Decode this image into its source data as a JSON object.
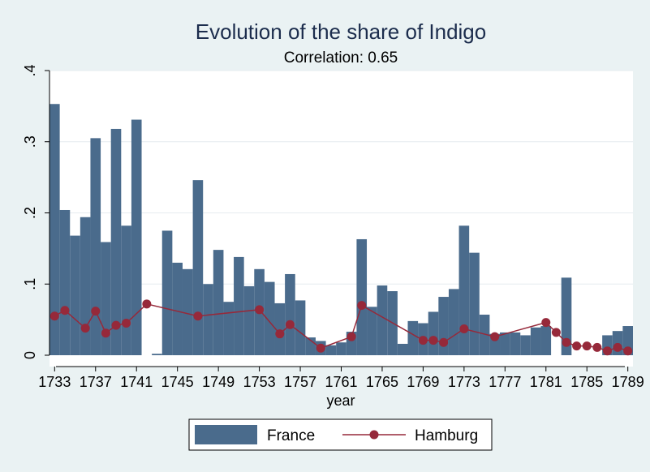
{
  "chart_data": {
    "type": "bar",
    "title": "Evolution of the share of Indigo",
    "subtitle": "Correlation: 0.65",
    "xlabel": "year",
    "ylabel": "",
    "xlim": [
      1732.5,
      1789.5
    ],
    "ylim": [
      0,
      0.4
    ],
    "x_ticks": [
      1733,
      1737,
      1741,
      1745,
      1749,
      1753,
      1757,
      1761,
      1765,
      1769,
      1773,
      1777,
      1781,
      1785,
      1789
    ],
    "y_ticks": [
      {
        "value": 0,
        "label": "0"
      },
      {
        "value": 0.1,
        "label": ".1"
      },
      {
        "value": 0.2,
        "label": ".2"
      },
      {
        "value": 0.3,
        "label": ".3"
      },
      {
        "value": 0.4,
        "label": ".4"
      }
    ],
    "grid": true,
    "legend_position": "bottom",
    "colors": {
      "france": "#4a6b8c",
      "hamburg": "#96293a",
      "plot_bg": "#ffffff",
      "grid": "#e6ecef",
      "page_bg": "#eaf2f3"
    },
    "series": [
      {
        "name": "France",
        "kind": "bar",
        "points": [
          [
            1733,
            0.353
          ],
          [
            1734,
            0.204
          ],
          [
            1735,
            0.168
          ],
          [
            1736,
            0.194
          ],
          [
            1737,
            0.305
          ],
          [
            1738,
            0.159
          ],
          [
            1739,
            0.318
          ],
          [
            1740,
            0.182
          ],
          [
            1741,
            0.331
          ],
          [
            1743,
            0.002
          ],
          [
            1744,
            0.175
          ],
          [
            1745,
            0.13
          ],
          [
            1746,
            0.121
          ],
          [
            1747,
            0.246
          ],
          [
            1748,
            0.1
          ],
          [
            1749,
            0.148
          ],
          [
            1750,
            0.075
          ],
          [
            1751,
            0.138
          ],
          [
            1752,
            0.097
          ],
          [
            1753,
            0.121
          ],
          [
            1754,
            0.103
          ],
          [
            1755,
            0.073
          ],
          [
            1756,
            0.114
          ],
          [
            1757,
            0.077
          ],
          [
            1758,
            0.025
          ],
          [
            1759,
            0.02
          ],
          [
            1760,
            0.014
          ],
          [
            1761,
            0.018
          ],
          [
            1762,
            0.033
          ],
          [
            1763,
            0.163
          ],
          [
            1764,
            0.068
          ],
          [
            1765,
            0.098
          ],
          [
            1766,
            0.09
          ],
          [
            1767,
            0.016
          ],
          [
            1768,
            0.048
          ],
          [
            1769,
            0.045
          ],
          [
            1770,
            0.061
          ],
          [
            1771,
            0.082
          ],
          [
            1772,
            0.093
          ],
          [
            1773,
            0.182
          ],
          [
            1774,
            0.144
          ],
          [
            1775,
            0.057
          ],
          [
            1776,
            0.03
          ],
          [
            1777,
            0.032
          ],
          [
            1778,
            0.032
          ],
          [
            1779,
            0.028
          ],
          [
            1780,
            0.039
          ],
          [
            1781,
            0.041
          ],
          [
            1783,
            0.109
          ],
          [
            1787,
            0.028
          ],
          [
            1788,
            0.034
          ],
          [
            1789,
            0.041
          ]
        ]
      },
      {
        "name": "Hamburg",
        "kind": "line-marker",
        "points": [
          [
            1733,
            0.055
          ],
          [
            1734,
            0.063
          ],
          [
            1736,
            0.038
          ],
          [
            1737,
            0.062
          ],
          [
            1738,
            0.031
          ],
          [
            1739,
            0.042
          ],
          [
            1740,
            0.045
          ],
          [
            1742,
            0.072
          ],
          [
            1747,
            0.055
          ],
          [
            1753,
            0.064
          ],
          [
            1755,
            0.03
          ],
          [
            1756,
            0.043
          ],
          [
            1759,
            0.01
          ],
          [
            1762,
            0.026
          ],
          [
            1763,
            0.07
          ],
          [
            1769,
            0.021
          ],
          [
            1770,
            0.021
          ],
          [
            1771,
            0.018
          ],
          [
            1773,
            0.037
          ],
          [
            1776,
            0.026
          ],
          [
            1781,
            0.046
          ],
          [
            1782,
            0.032
          ],
          [
            1783,
            0.018
          ],
          [
            1784,
            0.013
          ],
          [
            1785,
            0.013
          ],
          [
            1786,
            0.011
          ],
          [
            1787,
            0.006
          ],
          [
            1788,
            0.011
          ],
          [
            1789,
            0.006
          ]
        ]
      }
    ]
  },
  "legend": {
    "france_label": "France",
    "hamburg_label": "Hamburg"
  }
}
